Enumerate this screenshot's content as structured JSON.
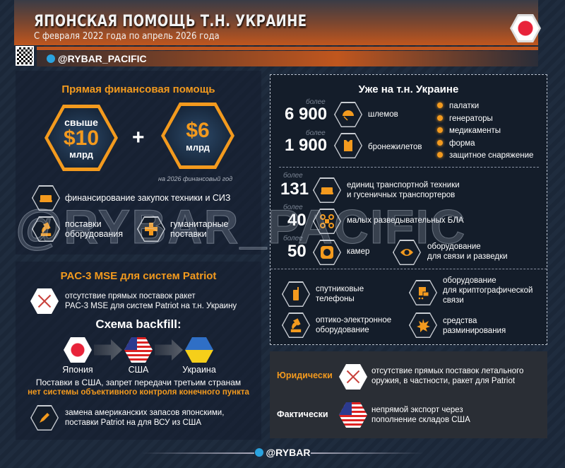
{
  "header": {
    "title": "ЯПОНСКАЯ ПОМОЩЬ Т.Н. УКРАИНЕ",
    "subtitle": "С февраля 2022 года по апрель 2026 года",
    "channel": "@RYBAR_PACIFIC",
    "flag_icon": "japan-flag-icon"
  },
  "watermark": "@RYBAR_PACIFIC",
  "finance": {
    "title": "Прямая финансовая помощь",
    "amount1_prefix": "свыше",
    "amount1": "$10",
    "amount1_unit": "млрд",
    "plus": "+",
    "amount2": "$6",
    "amount2_unit": "млрд",
    "amount2_note": "на 2026 финансовый год",
    "items": [
      {
        "icon": "armored-vehicle-icon",
        "text": "финансирование закупок техники и СИЗ"
      },
      {
        "icon": "microscope-icon",
        "line1": "поставки",
        "line2": "оборудования"
      },
      {
        "icon": "medical-cross-icon",
        "line1": "гуманитарные",
        "line2": "поставки"
      }
    ]
  },
  "patriot": {
    "title": "PAC-3 MSE для систем Patriot",
    "no_supply_line1": "отсутствие прямых поставок ракет",
    "no_supply_line2": "PAC-3 MSE для систем Patriot на т.н. Украину",
    "scheme_title": "Схема backfill:",
    "flow": [
      {
        "label": "Япония",
        "flag": "japan"
      },
      {
        "label": "США",
        "flag": "usa"
      },
      {
        "label": "Украина",
        "flag": "ukraine"
      }
    ],
    "note1": "Поставки в США, запрет передачи третьим странам",
    "note2": "нет системы объективного контроля конечного пункта",
    "replace_line1": "замена американских запасов японскими,",
    "replace_line2": "поставки Patriot на для ВСУ из США"
  },
  "ukraine": {
    "title": "Уже на т.н. Украине",
    "more": "более",
    "counts": [
      {
        "value": "6 900",
        "label": "шлемов",
        "icon": "helmet-icon"
      },
      {
        "value": "1 900",
        "label": "бронежилетов",
        "icon": "body-armor-icon"
      },
      {
        "value": "131",
        "line1": "единиц транспортной техники",
        "line2": "и гусеничных транспортеров",
        "icon": "armored-vehicle-icon"
      },
      {
        "value": "40",
        "label": "малых разведывательных БЛА",
        "icon": "drone-icon"
      },
      {
        "value": "50",
        "label": "камер",
        "icon": "camera-icon"
      }
    ],
    "bullets": [
      "палатки",
      "генераторы",
      "медикаменты",
      "форма",
      "защитное снаряжение"
    ],
    "comms": {
      "line1": "оборудование",
      "line2": "для связи и разведки",
      "icon": "eye-icon"
    },
    "equipment": [
      {
        "line1": "спутниковые",
        "line2": "телефоны",
        "icon": "satellite-phone-icon"
      },
      {
        "line1": "оборудование",
        "line2": "для криптографической",
        "line3": "связи",
        "icon": "crypto-device-icon"
      },
      {
        "line1": "оптико-электронное",
        "line2": "оборудование",
        "icon": "microscope-icon"
      },
      {
        "line1": "средства",
        "line2": "разминирования",
        "icon": "explosion-icon"
      }
    ]
  },
  "legal": {
    "legally_label": "Юридически",
    "legally_line1": "отсутствие прямых поставок летального",
    "legally_line2": "оружия, в частности, ракет для Patriot",
    "actually_label": "Фактически",
    "actually_line1": "непрямой экспорт через",
    "actually_line2": "пополнение складов США"
  },
  "footer": {
    "channel": "@RYBAR"
  },
  "colors": {
    "accent": "#f39a1e",
    "background": "#1b2738",
    "header": "#c0561e"
  }
}
